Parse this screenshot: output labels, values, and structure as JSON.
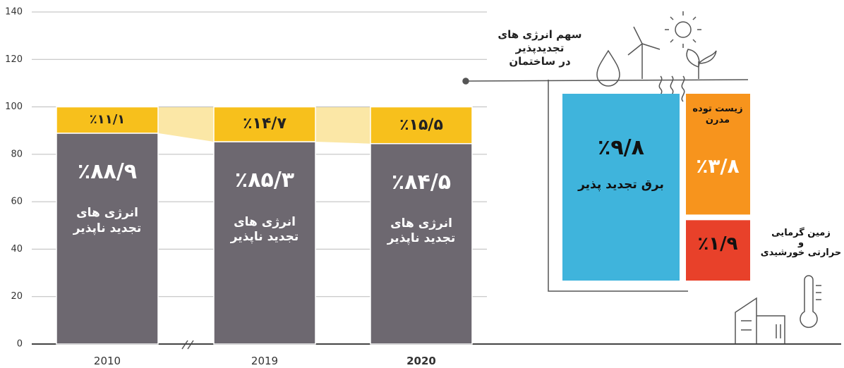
{
  "chart_data": [
    {
      "type": "bar",
      "categories": [
        "2010",
        "2019",
        "2020"
      ],
      "series": [
        {
          "name": "انرژی های\nتجدید ناپذیر",
          "color": "#6d6870",
          "values": [
            88.9,
            85.3,
            84.5
          ],
          "value_labels": [
            "٪۸۸/۹",
            "٪۸۵/۳",
            "٪۸۴/۵"
          ]
        },
        {
          "color": "#f7c01c",
          "values": [
            11.1,
            14.7,
            15.5
          ],
          "value_labels": [
            "٪۱۱/۱",
            "٪۱۴/۷",
            "٪۱۵/۵"
          ]
        }
      ],
      "ylim": [
        0,
        140
      ],
      "yticks": [
        0,
        20,
        40,
        60,
        80,
        100,
        120,
        140
      ],
      "grid": true
    },
    {
      "type": "treemap",
      "title": "سهم انرژی های\nتجدیدپذیر\nدر ساختمان",
      "categories": [
        "برق تجدید پذیر",
        "زیست توده\nمدرن",
        "زمین گرمایی\nو\nحرارتی خورشیدی"
      ],
      "values": [
        9.8,
        3.8,
        1.9
      ],
      "value_labels": [
        "٪۹/۸",
        "٪۳/۸",
        "٪۱/۹"
      ],
      "colors": [
        "#3fb4dc",
        "#f7941d",
        "#e8412a"
      ]
    }
  ]
}
